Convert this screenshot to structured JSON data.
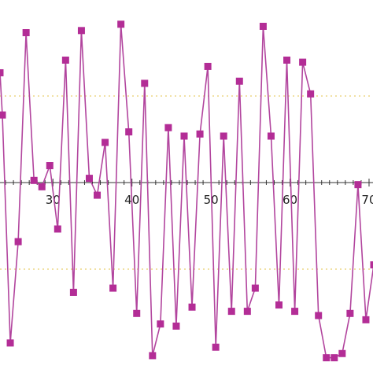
{
  "chart_data": {
    "type": "line",
    "xlim": [
      23.3,
      70.5
    ],
    "ylim": [
      -4.25,
      4.1
    ],
    "x_ticks": [
      30,
      40,
      50,
      60,
      70
    ],
    "x_tick_labels": [
      "30",
      "40",
      "50",
      "60",
      "70"
    ],
    "grid_y": [
      2.05,
      -2.05
    ],
    "grid_style": "dotted",
    "axis_at_y": 0,
    "marker": "square",
    "colors": {
      "line": "#b2459e",
      "marker": "#b32d96",
      "axis": "#333333",
      "grid": "#e3c34a"
    },
    "series": [
      {
        "x": [
          23.3,
          23.6,
          24.6,
          25.6,
          26.6,
          27.6,
          28.6,
          29.6,
          30.6,
          31.6,
          32.6,
          33.6,
          34.6,
          35.6,
          36.6,
          37.6,
          38.6,
          39.6,
          40.6,
          41.6,
          42.6,
          43.6,
          44.6,
          45.6,
          46.6,
          47.6,
          48.6,
          49.6,
          50.6,
          51.6,
          52.6,
          53.6,
          54.6,
          55.6,
          56.6,
          57.6,
          58.6,
          59.6,
          60.6,
          61.6,
          62.6,
          63.6,
          64.6,
          65.6,
          66.6,
          67.6,
          68.6,
          69.6,
          70.6
        ],
        "y": [
          2.6,
          1.6,
          -3.8,
          -1.4,
          3.55,
          0.05,
          -0.1,
          0.4,
          -1.1,
          2.9,
          -2.6,
          3.6,
          0.1,
          -0.3,
          0.95,
          -2.5,
          3.75,
          1.2,
          -3.1,
          2.35,
          -4.1,
          -3.35,
          1.3,
          -3.4,
          1.1,
          -2.95,
          1.15,
          2.75,
          -3.9,
          1.1,
          -3.05,
          2.4,
          -3.05,
          -2.5,
          3.7,
          1.1,
          -2.9,
          2.9,
          -3.05,
          2.85,
          2.1,
          -3.15,
          -4.15,
          -4.15,
          -4.05,
          -3.1,
          -0.05,
          -3.25,
          -1.95
        ]
      }
    ]
  }
}
